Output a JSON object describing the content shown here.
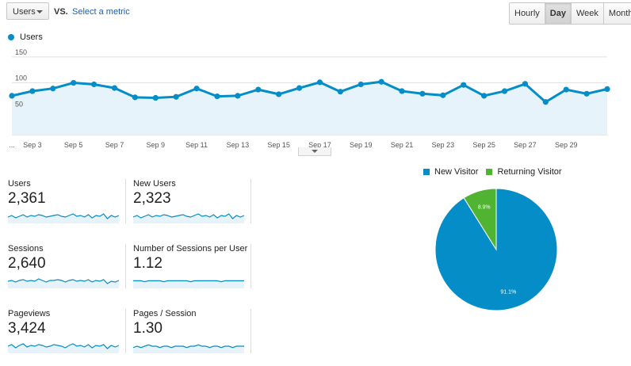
{
  "toolbar": {
    "metric": "Users",
    "vs": "VS.",
    "select_metric": "Select a metric",
    "periods": [
      "Hourly",
      "Day",
      "Week",
      "Month"
    ],
    "active_period": "Day"
  },
  "chart_data": [
    {
      "type": "area",
      "legend": "Users",
      "x_tick_labels": [
        "...",
        "Sep 3",
        "Sep 5",
        "Sep 7",
        "Sep 9",
        "Sep 11",
        "Sep 13",
        "Sep 15",
        "Sep 17",
        "Sep 19",
        "Sep 21",
        "Sep 23",
        "Sep 25",
        "Sep 27",
        "Sep 29"
      ],
      "y_ticks": [
        50,
        100,
        150
      ],
      "ylim": [
        0,
        165
      ],
      "values": [
        75,
        84,
        89,
        100,
        97,
        90,
        72,
        71,
        73,
        89,
        74,
        75,
        87,
        78,
        90,
        101,
        83,
        97,
        102,
        84,
        79,
        76,
        96,
        75,
        84,
        98,
        63,
        87,
        79,
        88
      ],
      "color": "#058dc7"
    },
    {
      "type": "pie",
      "labels": [
        "New Visitor",
        "Returning Visitor"
      ],
      "values": [
        91.1,
        8.9
      ],
      "data_labels": [
        "91.1%",
        "8.9%"
      ],
      "colors": [
        "#058dc7",
        "#50b432"
      ]
    }
  ],
  "scorecards": [
    {
      "title": "Users",
      "value": "2,361",
      "spark": [
        10,
        12,
        9,
        11,
        13,
        10,
        12,
        11,
        13,
        12,
        10,
        11,
        12,
        13,
        11,
        10,
        12,
        14,
        11,
        12,
        10,
        13,
        9,
        12,
        11,
        14,
        8,
        12,
        10,
        12
      ]
    },
    {
      "title": "New Users",
      "value": "2,323",
      "spark": [
        10,
        12,
        9,
        11,
        13,
        10,
        12,
        11,
        13,
        12,
        10,
        11,
        12,
        13,
        11,
        10,
        12,
        14,
        11,
        12,
        10,
        13,
        9,
        12,
        11,
        14,
        8,
        12,
        10,
        12
      ]
    },
    {
      "title": "Sessions",
      "value": "2,640",
      "spark": [
        11,
        12,
        10,
        12,
        13,
        11,
        12,
        11,
        14,
        12,
        10,
        12,
        12,
        13,
        12,
        10,
        12,
        13,
        11,
        12,
        11,
        13,
        10,
        12,
        11,
        13,
        8,
        11,
        10,
        12
      ]
    },
    {
      "title": "Number of Sessions per User",
      "value": "1.12",
      "spark": [
        12,
        12,
        12,
        11.5,
        12,
        12,
        12,
        12,
        11.5,
        12,
        12,
        12,
        12,
        12,
        12,
        11.5,
        12,
        12,
        12,
        12,
        12,
        12,
        12,
        11.5,
        12,
        12,
        12,
        12,
        12,
        12
      ]
    },
    {
      "title": "Pageviews",
      "value": "3,424",
      "spark": [
        11,
        13,
        9,
        12,
        14,
        10,
        12,
        11,
        13,
        12,
        10,
        11,
        13,
        12,
        11,
        9,
        12,
        14,
        11,
        12,
        10,
        13,
        9,
        12,
        11,
        13,
        8,
        12,
        10,
        12
      ]
    },
    {
      "title": "Pages / Session",
      "value": "1.30",
      "spark": [
        11,
        12,
        11,
        12,
        13,
        12,
        12,
        11,
        12,
        12,
        11,
        12,
        12,
        12,
        11,
        12,
        12,
        13,
        12,
        12,
        11,
        12,
        12,
        11,
        12,
        12,
        11,
        12,
        12,
        12
      ]
    }
  ]
}
